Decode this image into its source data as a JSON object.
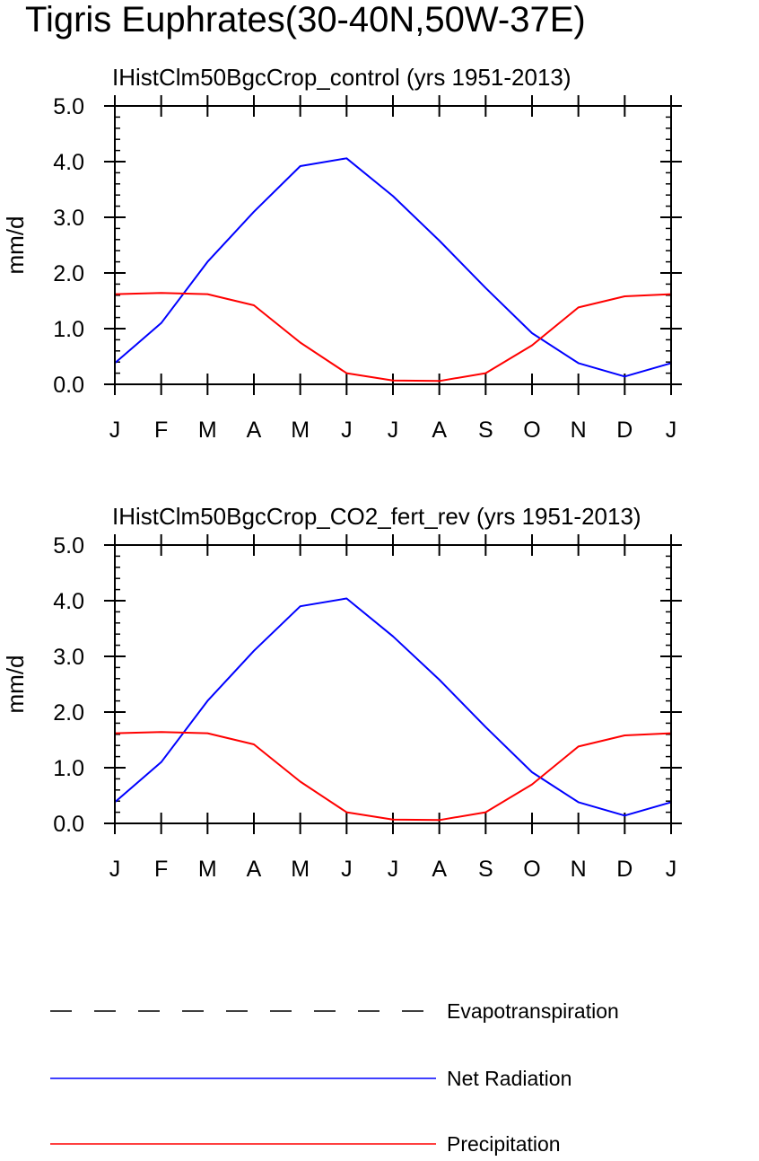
{
  "title": "Tigris Euphrates(30-40N,50W-37E)",
  "colors": {
    "net_radiation": "#0000ff",
    "precipitation": "#ff0000",
    "evapotranspiration": "#000000"
  },
  "legend": [
    {
      "label": "Evapotranspiration",
      "style": "dashed",
      "color": "#000000"
    },
    {
      "label": "Net Radiation",
      "style": "solid",
      "color": "#0000ff"
    },
    {
      "label": "Precipitation",
      "style": "solid",
      "color": "#ff0000"
    }
  ],
  "chart_data": [
    {
      "type": "line",
      "title": "IHistClm50BgcCrop_control (yrs 1951-2013)",
      "ylabel": "mm/d",
      "xlabel": "",
      "ylim": [
        0,
        5
      ],
      "yticks": [
        "0.0",
        "1.0",
        "2.0",
        "3.0",
        "4.0",
        "5.0"
      ],
      "categories": [
        "J",
        "F",
        "M",
        "A",
        "M",
        "J",
        "J",
        "A",
        "S",
        "O",
        "N",
        "D",
        "J"
      ],
      "series": [
        {
          "name": "Net Radiation",
          "values": [
            0.38,
            1.1,
            2.2,
            3.1,
            3.92,
            4.06,
            3.38,
            2.58,
            1.73,
            0.92,
            0.38,
            0.14,
            0.38
          ]
        },
        {
          "name": "Precipitation",
          "values": [
            1.62,
            1.64,
            1.62,
            1.42,
            0.75,
            0.2,
            0.07,
            0.06,
            0.2,
            0.7,
            1.38,
            1.58,
            1.62
          ]
        }
      ]
    },
    {
      "type": "line",
      "title": "IHistClm50BgcCrop_CO2_fert_rev (yrs 1951-2013)",
      "ylabel": "mm/d",
      "xlabel": "",
      "ylim": [
        0,
        5
      ],
      "yticks": [
        "0.0",
        "1.0",
        "2.0",
        "3.0",
        "4.0",
        "5.0"
      ],
      "categories": [
        "J",
        "F",
        "M",
        "A",
        "M",
        "J",
        "J",
        "A",
        "S",
        "O",
        "N",
        "D",
        "J"
      ],
      "series": [
        {
          "name": "Net Radiation",
          "values": [
            0.38,
            1.1,
            2.2,
            3.1,
            3.9,
            4.04,
            3.36,
            2.58,
            1.73,
            0.92,
            0.38,
            0.14,
            0.38
          ]
        },
        {
          "name": "Precipitation",
          "values": [
            1.62,
            1.64,
            1.62,
            1.42,
            0.75,
            0.2,
            0.07,
            0.06,
            0.2,
            0.7,
            1.38,
            1.58,
            1.62
          ]
        }
      ]
    }
  ]
}
